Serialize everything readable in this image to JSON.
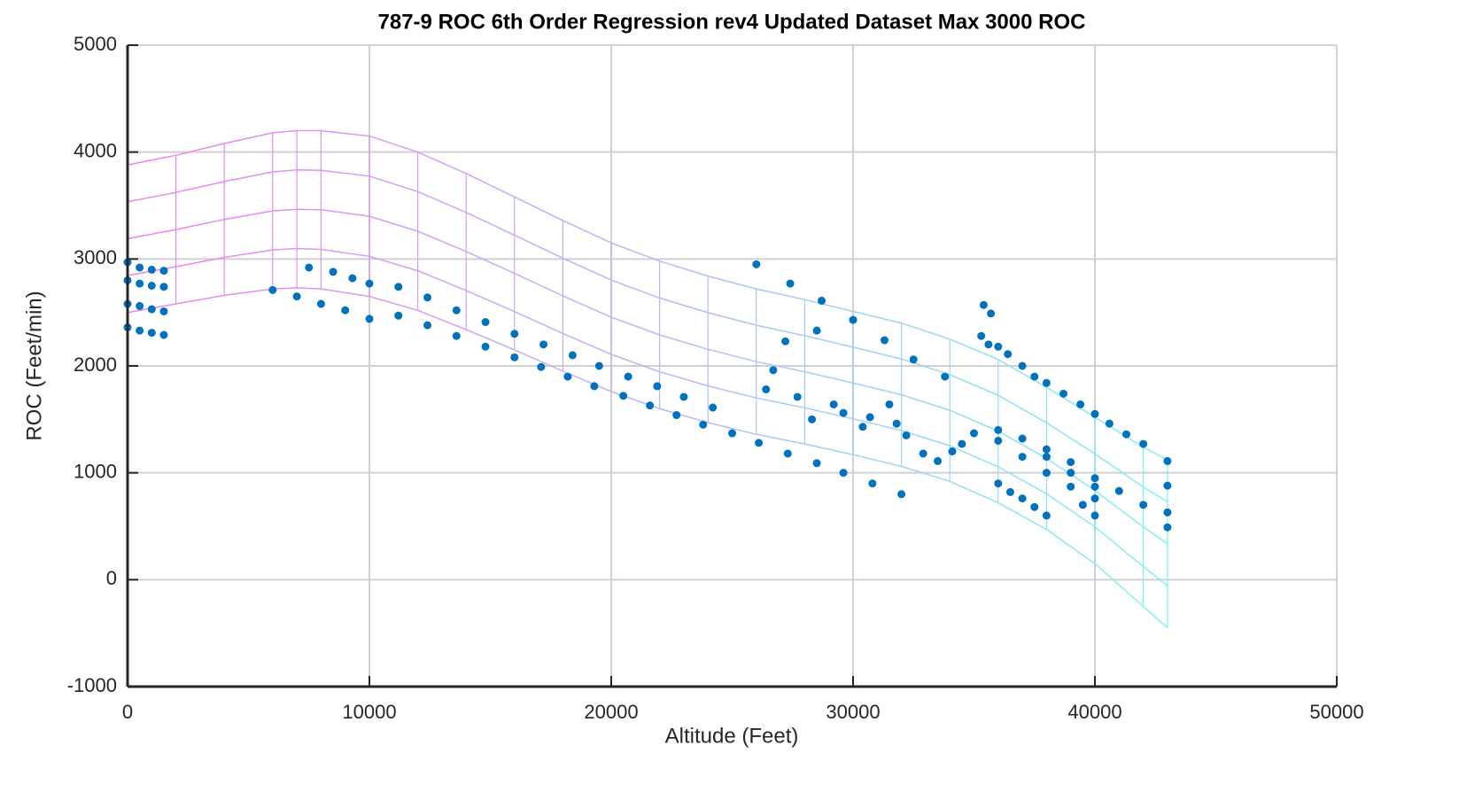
{
  "chart_data": {
    "type": "scatter",
    "title": "787-9 ROC 6th Order Regression rev4 Updated Dataset Max 3000 ROC",
    "xlabel": "Altitude (Feet)",
    "ylabel": "ROC (Feet/min)",
    "xlim": [
      0,
      50000
    ],
    "ylim": [
      -1000,
      5000
    ],
    "xticks": [
      0,
      10000,
      20000,
      30000,
      40000,
      50000
    ],
    "yticks": [
      -1000,
      0,
      1000,
      2000,
      3000,
      4000,
      5000
    ],
    "grid": true,
    "surface": {
      "colors": [
        "#f27ff2",
        "#7ff2f2"
      ],
      "x": [
        0,
        2000,
        4000,
        6000,
        7000,
        8000,
        10000,
        12000,
        14000,
        16000,
        18000,
        20000,
        22000,
        24000,
        26000,
        28000,
        30000,
        32000,
        34000,
        36000,
        38000,
        40000,
        42000,
        43000
      ],
      "curves": [
        [
          2500,
          2580,
          2660,
          2720,
          2730,
          2720,
          2650,
          2520,
          2340,
          2150,
          1950,
          1760,
          1600,
          1470,
          1360,
          1270,
          1170,
          1060,
          920,
          720,
          470,
          150,
          -250,
          -450
        ],
        [
          2845,
          2928,
          3015,
          3085,
          3098,
          3090,
          3025,
          2890,
          2705,
          2508,
          2303,
          2108,
          1945,
          1813,
          1700,
          1608,
          1505,
          1395,
          1253,
          1055,
          803,
          493,
          123,
          -58
        ],
        [
          3190,
          3275,
          3370,
          3450,
          3465,
          3460,
          3400,
          3260,
          3070,
          2865,
          2655,
          2455,
          2290,
          2155,
          2040,
          1945,
          1840,
          1730,
          1585,
          1390,
          1135,
          835,
          495,
          335
        ],
        [
          3535,
          3623,
          3725,
          3815,
          3833,
          3830,
          3775,
          3630,
          3435,
          3223,
          3008,
          2803,
          2635,
          2498,
          2380,
          2283,
          2175,
          2065,
          1918,
          1725,
          1468,
          1178,
          868,
          728
        ],
        [
          3880,
          3970,
          4080,
          4180,
          4200,
          4200,
          4150,
          4000,
          3800,
          3580,
          3360,
          3150,
          2980,
          2840,
          2720,
          2620,
          2510,
          2400,
          2250,
          2060,
          1800,
          1520,
          1240,
          1120
        ]
      ]
    },
    "scatter": {
      "color": "#0072bd",
      "x": [
        0,
        500,
        1000,
        1500,
        0,
        500,
        1000,
        1500,
        0,
        500,
        1000,
        1500,
        0,
        500,
        1000,
        1500,
        6000,
        7000,
        8000,
        9000,
        10000,
        11200,
        12400,
        13600,
        14800,
        16000,
        17100,
        18200,
        19300,
        20500,
        21600,
        22700,
        23800,
        25000,
        26100,
        27300,
        28500,
        29600,
        30800,
        32000,
        7500,
        8500,
        9300,
        10000,
        11200,
        12400,
        13600,
        14800,
        16000,
        17200,
        18400,
        19500,
        20700,
        21900,
        23000,
        24200,
        26000,
        27400,
        28700,
        30000,
        31300,
        32500,
        33800,
        27200,
        28500,
        26700,
        26400,
        27700,
        28300,
        29200,
        29600,
        30400,
        30700,
        31500,
        31800,
        32200,
        32900,
        33500,
        34100,
        34500,
        35000,
        35400,
        35700,
        35300,
        35600,
        36000,
        36400,
        37000,
        37500,
        38000,
        38700,
        39400,
        40000,
        40600,
        41300,
        42000,
        43000,
        43000,
        43000,
        43000,
        36000,
        36500,
        37000,
        37500,
        38000,
        36000,
        37000,
        38000,
        39000,
        40000,
        38000,
        39000,
        40000,
        39000,
        40000,
        40000,
        39500,
        41000,
        42000,
        36000,
        37000,
        38000
      ],
      "y": [
        2970,
        2920,
        2900,
        2890,
        2800,
        2770,
        2750,
        2740,
        2580,
        2560,
        2530,
        2510,
        2360,
        2330,
        2310,
        2290,
        2710,
        2650,
        2580,
        2520,
        2440,
        2470,
        2380,
        2280,
        2180,
        2080,
        1990,
        1900,
        1810,
        1720,
        1630,
        1540,
        1450,
        1370,
        1280,
        1180,
        1090,
        1000,
        900,
        800,
        2920,
        2880,
        2820,
        2770,
        2740,
        2640,
        2520,
        2410,
        2300,
        2200,
        2100,
        2000,
        1900,
        1810,
        1710,
        1610,
        2950,
        2770,
        2610,
        2430,
        2240,
        2060,
        1900,
        2230,
        2330,
        1960,
        1780,
        1710,
        1500,
        1640,
        1560,
        1430,
        1520,
        1640,
        1460,
        1350,
        1180,
        1110,
        1200,
        1270,
        1370,
        2570,
        2490,
        2280,
        2200,
        2180,
        2110,
        2000,
        1900,
        1840,
        1740,
        1640,
        1550,
        1460,
        1360,
        1270,
        1110,
        880,
        630,
        490,
        900,
        820,
        760,
        680,
        600,
        1300,
        1150,
        1000,
        870,
        760,
        1150,
        1000,
        870,
        1100,
        950,
        600,
        700,
        830,
        700,
        1400,
        1320,
        1220
      ]
    }
  }
}
